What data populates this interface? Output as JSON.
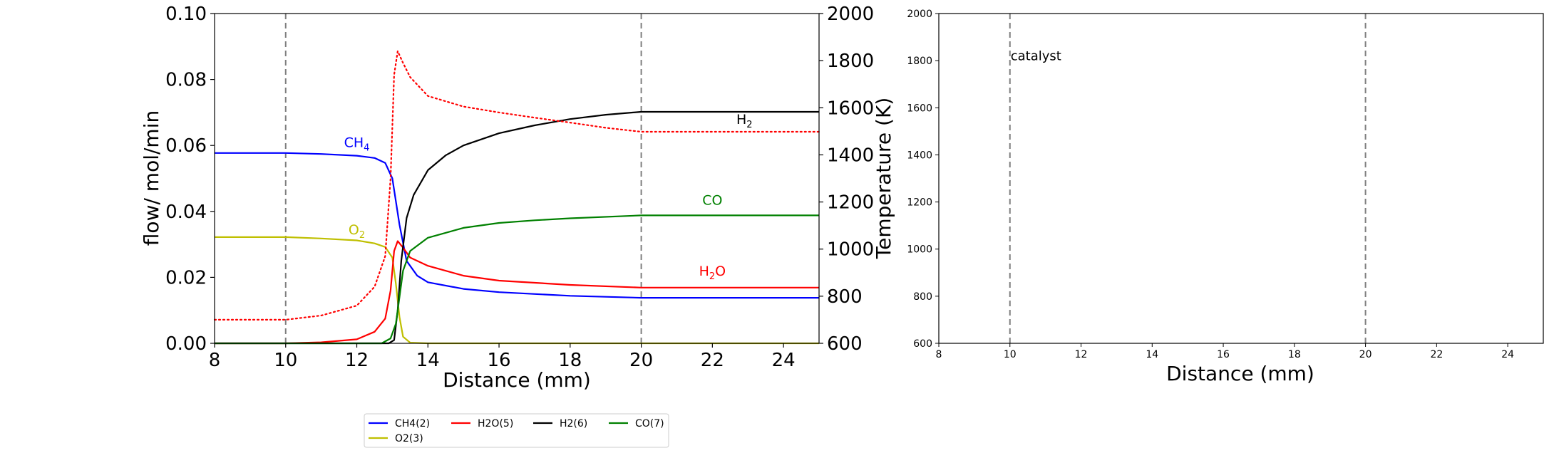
{
  "chart_data": [
    {
      "type": "line",
      "xlabel": "Distance (mm)",
      "ylabel": "flow/ mol/min",
      "ylabel_right": "Temperature (K)",
      "xlim": [
        8,
        25
      ],
      "ylim": [
        0,
        0.1
      ],
      "ylim_right": [
        600,
        2000
      ],
      "xticks": [
        "8",
        "10",
        "12",
        "14",
        "16",
        "18",
        "20",
        "22",
        "24"
      ],
      "yticks": [
        "0.00",
        "0.02",
        "0.04",
        "0.06",
        "0.08",
        "0.10"
      ],
      "yticks_right": [
        "600",
        "800",
        "1000",
        "1200",
        "1400",
        "1600",
        "1800",
        "2000"
      ],
      "vlines": [
        10,
        20
      ],
      "annotations": [
        {
          "text": "CH4",
          "sub": "4",
          "main": "CH",
          "x": 12.0,
          "y": 0.0595,
          "color": "#0000ff"
        },
        {
          "text": "O2",
          "sub": "2",
          "main": "O",
          "x": 12.0,
          "y": 0.033,
          "color": "#bfbf00"
        },
        {
          "text": "H2",
          "sub": "2",
          "main": "H",
          "x": 22.9,
          "y": 0.0665,
          "color": "#000000"
        },
        {
          "text": "CO",
          "sub": "",
          "main": "CO",
          "x": 22.0,
          "y": 0.042,
          "color": "#008000"
        },
        {
          "text": "H2O",
          "sub": "2",
          "main": "H",
          "tail": "O",
          "x": 22.0,
          "y": 0.0205,
          "color": "#ff0000"
        }
      ],
      "series": [
        {
          "name": "CH4(2)",
          "color": "#0000ff",
          "style": "solid",
          "axis": "left",
          "x": [
            8,
            10,
            11,
            12,
            12.5,
            12.8,
            13.0,
            13.2,
            13.4,
            13.7,
            14,
            15,
            16,
            18,
            20,
            25
          ],
          "y": [
            0.0577,
            0.0577,
            0.0574,
            0.0569,
            0.0562,
            0.0547,
            0.05,
            0.036,
            0.025,
            0.0205,
            0.0185,
            0.0165,
            0.0155,
            0.0144,
            0.0138,
            0.0138
          ]
        },
        {
          "name": "O2(3)",
          "color": "#bfbf00",
          "style": "solid",
          "axis": "left",
          "x": [
            8,
            10,
            11,
            12,
            12.5,
            12.8,
            13.0,
            13.1,
            13.2,
            13.3,
            13.5,
            14,
            25
          ],
          "y": [
            0.0322,
            0.0322,
            0.0318,
            0.0312,
            0.0303,
            0.0292,
            0.026,
            0.018,
            0.008,
            0.002,
            0.0002,
            0.0,
            0.0
          ]
        },
        {
          "name": "H2O(5)",
          "color": "#ff0000",
          "style": "solid",
          "axis": "left",
          "x": [
            8,
            10,
            11,
            12,
            12.5,
            12.8,
            12.95,
            13.05,
            13.15,
            13.3,
            13.5,
            14,
            15,
            16,
            18,
            20,
            25
          ],
          "y": [
            0.0,
            0.0,
            0.0003,
            0.0012,
            0.0035,
            0.0075,
            0.016,
            0.028,
            0.031,
            0.029,
            0.026,
            0.0235,
            0.0205,
            0.019,
            0.0177,
            0.0169,
            0.0169
          ]
        },
        {
          "name": "H2(6)",
          "color": "#000000",
          "style": "solid",
          "axis": "left",
          "x": [
            8,
            12.9,
            13.05,
            13.15,
            13.25,
            13.4,
            13.6,
            14,
            14.5,
            15,
            16,
            17,
            18,
            19,
            20,
            25
          ],
          "y": [
            0.0,
            0.0,
            0.001,
            0.01,
            0.025,
            0.038,
            0.045,
            0.0525,
            0.057,
            0.06,
            0.0637,
            0.0661,
            0.068,
            0.0693,
            0.0702,
            0.0702
          ]
        },
        {
          "name": "CO(7)",
          "color": "#008000",
          "style": "solid",
          "axis": "left",
          "x": [
            8,
            12.7,
            12.95,
            13.1,
            13.2,
            13.3,
            13.5,
            14,
            15,
            16,
            17,
            18,
            20,
            25
          ],
          "y": [
            0.0,
            0.0,
            0.0015,
            0.006,
            0.014,
            0.022,
            0.028,
            0.032,
            0.035,
            0.0365,
            0.0373,
            0.0379,
            0.0388,
            0.0388
          ]
        },
        {
          "name": "Temperature",
          "color": "#ff0000",
          "style": "dotted",
          "axis": "right",
          "x": [
            8,
            10,
            11,
            12,
            12.5,
            12.8,
            12.95,
            13.05,
            13.15,
            13.3,
            13.5,
            14,
            15,
            16,
            17,
            18,
            19,
            20,
            25
          ],
          "y": [
            700,
            700,
            718,
            760,
            840,
            970,
            1300,
            1740,
            1840,
            1790,
            1730,
            1650,
            1605,
            1580,
            1558,
            1537,
            1515,
            1498,
            1498
          ]
        }
      ],
      "legend": {
        "placement": "below",
        "entries": [
          "CH4(2)",
          "H2O(5)",
          "H2(6)",
          "CO(7)",
          "O2(3)"
        ]
      }
    },
    {
      "type": "line",
      "xlabel": "Distance (mm)",
      "xlim": [
        8,
        25
      ],
      "ylim": [
        600,
        2000
      ],
      "xticks": [
        "8",
        "10",
        "12",
        "14",
        "16",
        "18",
        "20",
        "22",
        "24"
      ],
      "yticks": [
        "600",
        "800",
        "1000",
        "1200",
        "1400",
        "1600",
        "1800",
        "2000"
      ],
      "vlines": [
        10,
        20
      ],
      "annotations": [
        {
          "text": "catalyst",
          "x": 10,
          "y": 1820
        }
      ],
      "series": []
    }
  ]
}
